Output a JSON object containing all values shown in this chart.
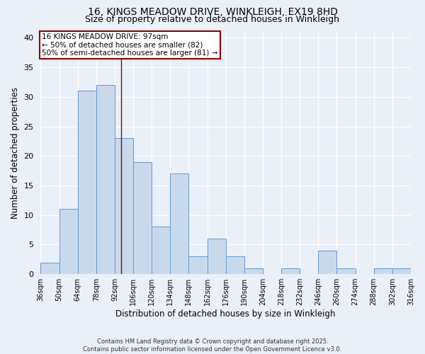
{
  "title1": "16, KINGS MEADOW DRIVE, WINKLEIGH, EX19 8HD",
  "title2": "Size of property relative to detached houses in Winkleigh",
  "xlabel": "Distribution of detached houses by size in Winkleigh",
  "ylabel": "Number of detached properties",
  "bin_edges": [
    36,
    50,
    64,
    78,
    92,
    106,
    120,
    134,
    148,
    162,
    176,
    190,
    204,
    218,
    232,
    246,
    260,
    274,
    288,
    302,
    316
  ],
  "bar_heights": [
    2,
    11,
    31,
    32,
    23,
    19,
    8,
    17,
    3,
    6,
    3,
    1,
    0,
    1,
    0,
    4,
    1,
    0,
    1,
    1
  ],
  "bar_color": "#c9d9ec",
  "bar_edge_color": "#5b9bd5",
  "vline_x": 97,
  "vline_color": "#8b0000",
  "annotation_title": "16 KINGS MEADOW DRIVE: 97sqm",
  "annotation_line1": "← 50% of detached houses are smaller (82)",
  "annotation_line2": "50% of semi-detached houses are larger (81) →",
  "annotation_box_color": "#ffffff",
  "annotation_box_edge": "#8b0000",
  "ylim": [
    0,
    41
  ],
  "yticks": [
    0,
    5,
    10,
    15,
    20,
    25,
    30,
    35,
    40
  ],
  "tick_labels": [
    "36sqm",
    "50sqm",
    "64sqm",
    "78sqm",
    "92sqm",
    "106sqm",
    "120sqm",
    "134sqm",
    "148sqm",
    "162sqm",
    "176sqm",
    "190sqm",
    "204sqm",
    "218sqm",
    "232sqm",
    "246sqm",
    "260sqm",
    "274sqm",
    "288sqm",
    "302sqm",
    "316sqm"
  ],
  "footer": "Contains HM Land Registry data © Crown copyright and database right 2025.\nContains public sector information licensed under the Open Government Licence v3.0.",
  "background_color": "#eaf0f8"
}
